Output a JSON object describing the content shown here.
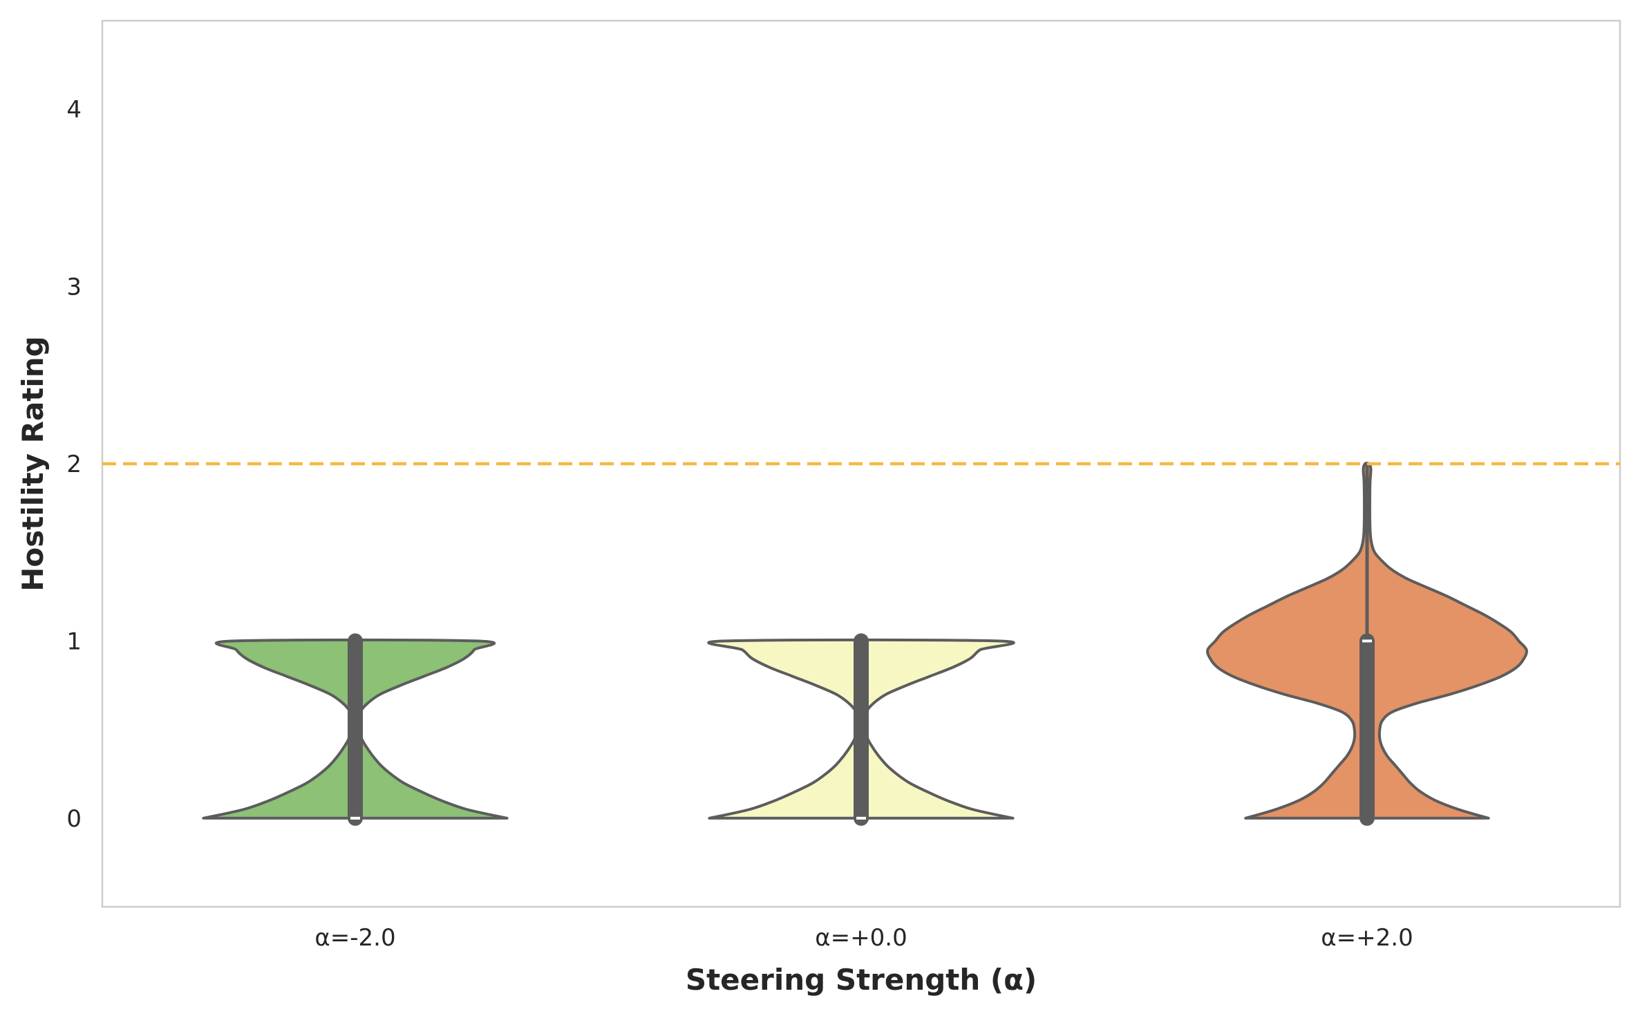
{
  "chart_data": {
    "type": "violin",
    "title": "",
    "xlabel": "Steering Strength (α)",
    "ylabel": "Hostility Rating",
    "categories": [
      "α=-2.0",
      "α=+0.0",
      "α=+2.0"
    ],
    "yticks": [
      "0",
      "1",
      "2",
      "3",
      "4"
    ],
    "ylim": [
      -0.5,
      4.5
    ],
    "grid": false,
    "reference_line": {
      "y": 2,
      "style": "dashed",
      "color": "#f5b942"
    },
    "violins": [
      {
        "category": "α=-2.0",
        "color": "#8cc176",
        "min": 0,
        "max": 1,
        "median": 0,
        "q1": 0,
        "q3": 1,
        "density_profile": [
          [
            0,
            0.6
          ],
          [
            0.05,
            0.44
          ],
          [
            0.1,
            0.34
          ],
          [
            0.15,
            0.26
          ],
          [
            0.2,
            0.19
          ],
          [
            0.25,
            0.14
          ],
          [
            0.3,
            0.1
          ],
          [
            0.35,
            0.07
          ],
          [
            0.4,
            0.045
          ],
          [
            0.45,
            0.025
          ],
          [
            0.5,
            0.015
          ],
          [
            0.55,
            0.012
          ],
          [
            0.6,
            0.02
          ],
          [
            0.65,
            0.05
          ],
          [
            0.7,
            0.1
          ],
          [
            0.75,
            0.18
          ],
          [
            0.8,
            0.27
          ],
          [
            0.85,
            0.36
          ],
          [
            0.9,
            0.43
          ],
          [
            0.95,
            0.47
          ],
          [
            1,
            0.48
          ]
        ]
      },
      {
        "category": "α=+0.0",
        "color": "#f7f7c4",
        "min": 0,
        "max": 1,
        "median": 0,
        "q1": 0,
        "q3": 1,
        "density_profile": [
          [
            0,
            0.6
          ],
          [
            0.05,
            0.44
          ],
          [
            0.1,
            0.34
          ],
          [
            0.15,
            0.26
          ],
          [
            0.2,
            0.19
          ],
          [
            0.25,
            0.14
          ],
          [
            0.3,
            0.1
          ],
          [
            0.35,
            0.07
          ],
          [
            0.4,
            0.045
          ],
          [
            0.45,
            0.025
          ],
          [
            0.5,
            0.015
          ],
          [
            0.55,
            0.012
          ],
          [
            0.6,
            0.02
          ],
          [
            0.65,
            0.05
          ],
          [
            0.7,
            0.1
          ],
          [
            0.75,
            0.18
          ],
          [
            0.8,
            0.27
          ],
          [
            0.85,
            0.36
          ],
          [
            0.9,
            0.43
          ],
          [
            0.95,
            0.47
          ],
          [
            1,
            0.54
          ]
        ]
      },
      {
        "category": "α=+2.0",
        "color": "#e39366",
        "min": 0,
        "max": 2,
        "median": 1,
        "q1": 0,
        "q3": 1,
        "density_profile": [
          [
            0,
            0.48
          ],
          [
            0.05,
            0.36
          ],
          [
            0.1,
            0.27
          ],
          [
            0.15,
            0.21
          ],
          [
            0.2,
            0.17
          ],
          [
            0.25,
            0.14
          ],
          [
            0.3,
            0.11
          ],
          [
            0.35,
            0.08
          ],
          [
            0.4,
            0.06
          ],
          [
            0.45,
            0.05
          ],
          [
            0.5,
            0.05
          ],
          [
            0.55,
            0.06
          ],
          [
            0.6,
            0.1
          ],
          [
            0.65,
            0.2
          ],
          [
            0.7,
            0.33
          ],
          [
            0.75,
            0.44
          ],
          [
            0.8,
            0.53
          ],
          [
            0.85,
            0.59
          ],
          [
            0.9,
            0.62
          ],
          [
            0.95,
            0.63
          ],
          [
            1,
            0.6
          ],
          [
            1.05,
            0.57
          ],
          [
            1.1,
            0.52
          ],
          [
            1.15,
            0.46
          ],
          [
            1.2,
            0.39
          ],
          [
            1.25,
            0.32
          ],
          [
            1.3,
            0.24
          ],
          [
            1.35,
            0.16
          ],
          [
            1.4,
            0.1
          ],
          [
            1.45,
            0.06
          ],
          [
            1.5,
            0.03
          ],
          [
            1.55,
            0.018
          ],
          [
            1.6,
            0.013
          ],
          [
            1.7,
            0.011
          ],
          [
            1.8,
            0.011
          ],
          [
            1.9,
            0.012
          ],
          [
            1.97,
            0.015
          ],
          [
            2,
            0.008
          ]
        ]
      }
    ]
  }
}
